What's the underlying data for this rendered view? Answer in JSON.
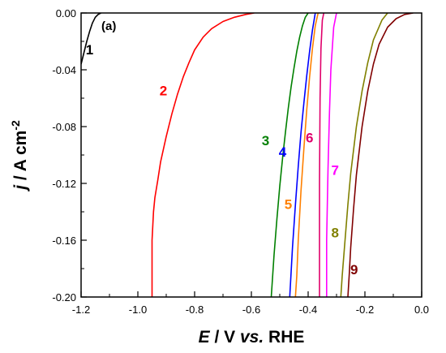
{
  "chart_data": {
    "type": "line",
    "panel_label": "(a)",
    "xlabel": {
      "italic": "E",
      "rest": " / V ",
      "italic2": "vs.",
      "rest2": " RHE"
    },
    "ylabel": {
      "italic": "j",
      "rest": " / A cm",
      "sup": "-2"
    },
    "xlim": [
      -1.2,
      0.0
    ],
    "ylim": [
      -0.2,
      0.0
    ],
    "xticks": [
      -1.2,
      -1.0,
      -0.8,
      -0.6,
      -0.4,
      -0.2,
      0.0
    ],
    "xtick_labels": [
      "-1.2",
      "-1.0",
      "-0.8",
      "-0.6",
      "-0.4",
      "-0.2",
      "0.0"
    ],
    "yticks": [
      0.0,
      -0.04,
      -0.08,
      -0.12,
      -0.16,
      -0.2
    ],
    "ytick_labels": [
      "0.00",
      "-0.04",
      "-0.08",
      "-0.12",
      "-0.16",
      "-0.20"
    ],
    "grid": false,
    "series": [
      {
        "label": "1",
        "color": "#000000",
        "x": [
          -1.2,
          -1.19,
          -1.18,
          -1.17,
          -1.16,
          -1.15,
          -1.14,
          -1.13
        ],
        "y": [
          -0.036,
          -0.028,
          -0.02,
          -0.013,
          -0.007,
          -0.003,
          -0.001,
          0.0
        ],
        "label_pos": [
          -1.17,
          -0.029
        ]
      },
      {
        "label": "2",
        "color": "#ff0000",
        "x": [
          -0.95,
          -0.95,
          -0.945,
          -0.94,
          -0.93,
          -0.92,
          -0.9,
          -0.88,
          -0.86,
          -0.84,
          -0.82,
          -0.8,
          -0.77,
          -0.74,
          -0.7,
          -0.66,
          -0.62,
          -0.59
        ],
        "y": [
          -0.2,
          -0.16,
          -0.14,
          -0.13,
          -0.118,
          -0.105,
          -0.087,
          -0.071,
          -0.057,
          -0.045,
          -0.035,
          -0.026,
          -0.017,
          -0.011,
          -0.006,
          -0.003,
          -0.001,
          0.0
        ],
        "label_pos": [
          -0.91,
          -0.058
        ]
      },
      {
        "label": "3",
        "color": "#008000",
        "x": [
          -0.53,
          -0.52,
          -0.51,
          -0.5,
          -0.49,
          -0.48,
          -0.47,
          -0.46,
          -0.45,
          -0.44,
          -0.43,
          -0.42,
          -0.41,
          -0.4
        ],
        "y": [
          -0.2,
          -0.17,
          -0.145,
          -0.122,
          -0.102,
          -0.084,
          -0.067,
          -0.052,
          -0.039,
          -0.027,
          -0.017,
          -0.009,
          -0.003,
          0.0
        ],
        "label_pos": [
          -0.55,
          -0.093
        ]
      },
      {
        "label": "4",
        "color": "#0000ff",
        "x": [
          -0.465,
          -0.455,
          -0.445,
          -0.435,
          -0.425,
          -0.415,
          -0.405,
          -0.395,
          -0.385,
          -0.375
        ],
        "y": [
          -0.2,
          -0.165,
          -0.135,
          -0.108,
          -0.084,
          -0.063,
          -0.044,
          -0.027,
          -0.012,
          0.0
        ],
        "label_pos": [
          -0.49,
          -0.101
        ]
      },
      {
        "label": "5",
        "color": "#ff8000",
        "x": [
          -0.445,
          -0.44,
          -0.435,
          -0.425,
          -0.415,
          -0.405,
          -0.395,
          -0.385,
          -0.375,
          -0.365
        ],
        "y": [
          -0.2,
          -0.185,
          -0.16,
          -0.125,
          -0.095,
          -0.068,
          -0.045,
          -0.025,
          -0.009,
          0.0
        ],
        "label_pos": [
          -0.47,
          -0.138
        ]
      },
      {
        "label": "6",
        "color": "#e0006b",
        "x": [
          -0.36,
          -0.36,
          -0.358,
          -0.355,
          -0.35,
          -0.345
        ],
        "y": [
          -0.2,
          -0.12,
          -0.06,
          -0.025,
          -0.005,
          0.0
        ],
        "label_pos": [
          -0.395,
          -0.091
        ]
      },
      {
        "label": "7",
        "color": "#ff00ff",
        "x": [
          -0.335,
          -0.335,
          -0.33,
          -0.325,
          -0.32,
          -0.31,
          -0.3
        ],
        "y": [
          -0.2,
          -0.16,
          -0.11,
          -0.07,
          -0.04,
          -0.01,
          0.0
        ],
        "label_pos": [
          -0.305,
          -0.114
        ]
      },
      {
        "label": "8",
        "color": "#808000",
        "x": [
          -0.285,
          -0.28,
          -0.27,
          -0.26,
          -0.25,
          -0.23,
          -0.21,
          -0.19,
          -0.17,
          -0.14,
          -0.12
        ],
        "y": [
          -0.2,
          -0.185,
          -0.16,
          -0.135,
          -0.113,
          -0.08,
          -0.055,
          -0.035,
          -0.019,
          -0.005,
          0.0
        ],
        "label_pos": [
          -0.305,
          -0.158
        ]
      },
      {
        "label": "9",
        "color": "#800000",
        "x": [
          -0.26,
          -0.255,
          -0.25,
          -0.24,
          -0.23,
          -0.21,
          -0.19,
          -0.17,
          -0.15,
          -0.12,
          -0.09,
          -0.06,
          -0.03
        ],
        "y": [
          -0.2,
          -0.183,
          -0.165,
          -0.138,
          -0.114,
          -0.08,
          -0.055,
          -0.036,
          -0.022,
          -0.01,
          -0.004,
          -0.001,
          0.0
        ],
        "label_pos": [
          -0.238,
          -0.184
        ]
      }
    ]
  }
}
